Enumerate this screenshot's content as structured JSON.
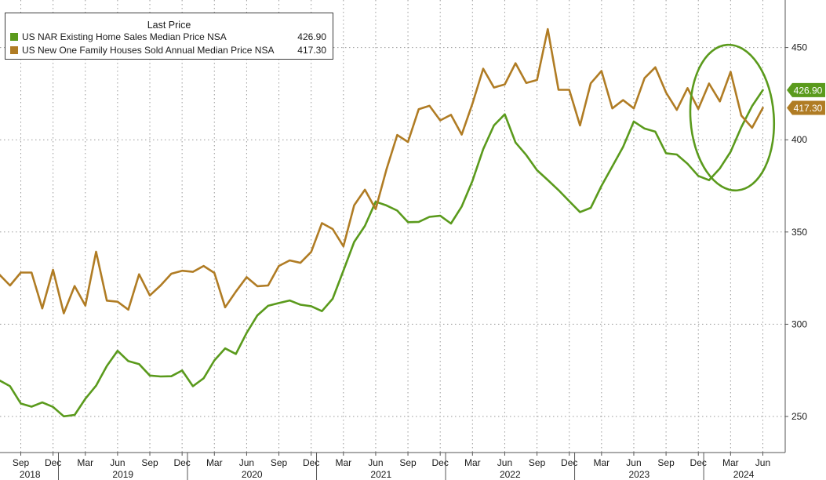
{
  "legend": {
    "title": "Last Price",
    "series": [
      {
        "name": "US NAR Existing Home Sales Median Price NSA",
        "value": "426.90",
        "color": "#5a9a1c"
      },
      {
        "name": "US New One Family Houses Sold Annual Median Price NSA",
        "value": "417.30",
        "color": "#b07c24"
      }
    ]
  },
  "chart_data": {
    "type": "line",
    "x_start": "2018-07",
    "x_end": "2024-06",
    "ylim": [
      240,
      475
    ],
    "y_ticks": [
      250,
      300,
      350,
      400,
      450
    ],
    "x_month_ticks": [
      "Sep",
      "Dec",
      "Mar",
      "Jun",
      "Sep",
      "Dec",
      "Mar",
      "Jun",
      "Sep",
      "Dec",
      "Mar",
      "Jun",
      "Sep",
      "Dec",
      "Mar",
      "Jun",
      "Sep",
      "Dec",
      "Mar",
      "Jun",
      "Sep",
      "Dec",
      "Mar",
      "Jun"
    ],
    "x_year_labels": [
      "2018",
      "2019",
      "2020",
      "2021",
      "2022",
      "2023",
      "2024"
    ],
    "grid": true,
    "y_axis_side": "right",
    "annotation": "circle around Dec 2023 - Jun 2024",
    "series": [
      {
        "name": "US NAR Existing Home Sales Median Price NSA",
        "color": "#5a9a1c",
        "last_label": "426.90",
        "values": [
          269.6,
          266.4,
          257.0,
          255.3,
          257.6,
          255.2,
          250.1,
          250.8,
          259.6,
          266.7,
          277.4,
          285.6,
          280.0,
          278.4,
          272.2,
          271.7,
          271.8,
          274.9,
          266.4,
          270.7,
          280.4,
          286.9,
          283.9,
          295.3,
          304.8,
          310.0,
          311.5,
          312.9,
          310.6,
          309.8,
          307.1,
          313.8,
          329.1,
          344.6,
          353.3,
          366.4,
          364.4,
          361.6,
          355.3,
          355.5,
          358.2,
          358.8,
          354.6,
          363.8,
          377.7,
          394.9,
          407.8,
          413.8,
          398.5,
          391.7,
          383.5,
          378.2,
          372.7,
          366.7,
          360.8,
          363.1,
          375.0,
          385.6,
          396.1,
          409.9,
          406.1,
          404.4,
          392.7,
          392.0,
          387.0,
          380.4,
          378.1,
          384.5,
          393.5,
          406.9,
          418.3,
          426.9
        ]
      },
      {
        "name": "US New One Family Houses Sold Annual Median Price NSA",
        "color": "#b07c24",
        "last_label": "417.30",
        "values": [
          327.0,
          321.0,
          328.0,
          328.0,
          308.6,
          329.5,
          305.9,
          320.7,
          310.1,
          339.3,
          312.8,
          312.2,
          307.9,
          327.1,
          315.6,
          321.0,
          327.4,
          329.0,
          328.4,
          331.6,
          327.8,
          309.2,
          317.7,
          325.5,
          320.6,
          321.0,
          331.6,
          334.6,
          333.3,
          339.2,
          354.8,
          351.6,
          342.2,
          364.5,
          372.9,
          362.4,
          383.8,
          402.6,
          398.8,
          416.6,
          418.4,
          410.5,
          413.5,
          402.8,
          419.6,
          438.5,
          428.3,
          430.0,
          441.5,
          430.8,
          432.4,
          460.0,
          427.1,
          427.1,
          407.8,
          430.6,
          437.3,
          417.0,
          421.5,
          417.0,
          433.4,
          439.3,
          425.6,
          416.2,
          428.0,
          416.7,
          430.5,
          420.8,
          436.8,
          413.1,
          406.5,
          417.3
        ]
      }
    ]
  }
}
